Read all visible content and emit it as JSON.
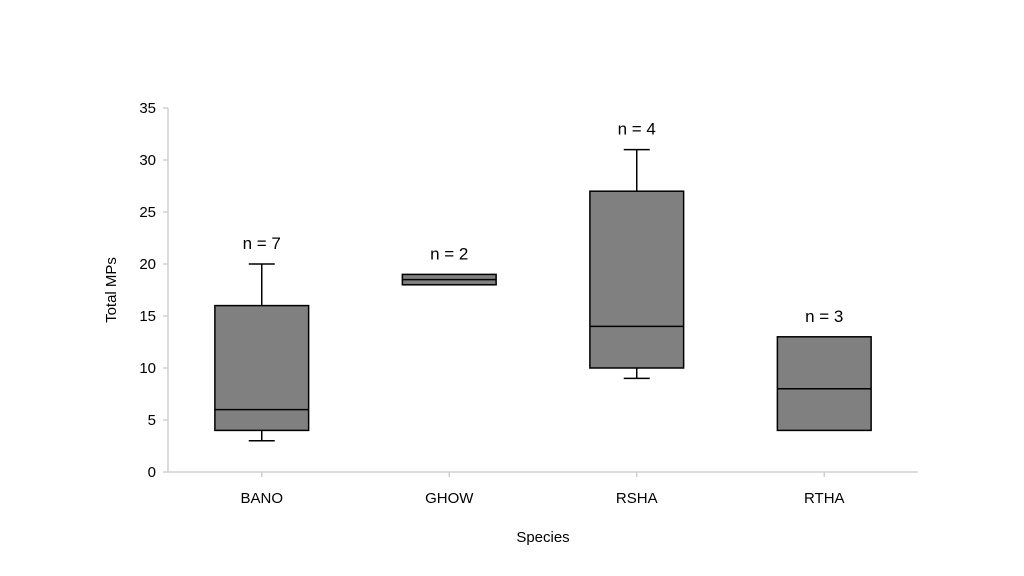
{
  "chart_data": {
    "type": "boxplot",
    "xlabel": "Species",
    "ylabel": "Total MPs",
    "ylim": [
      0,
      35
    ],
    "yticks": [
      0,
      5,
      10,
      15,
      20,
      25,
      30,
      35
    ],
    "grid": false,
    "categories": [
      "BANO",
      "GHOW",
      "RSHA",
      "RTHA"
    ],
    "boxes": [
      {
        "category": "BANO",
        "min": 3,
        "q1": 4,
        "median": 6,
        "q3": 16,
        "max": 20,
        "label": "n = 7"
      },
      {
        "category": "GHOW",
        "min": 18,
        "q1": 18,
        "median": 18.5,
        "q3": 19,
        "max": 19,
        "label": "n = 2"
      },
      {
        "category": "RSHA",
        "min": 9,
        "q1": 10,
        "median": 14,
        "q3": 27,
        "max": 31,
        "label": "n = 4"
      },
      {
        "category": "RTHA",
        "min": 4,
        "q1": 4,
        "median": 8,
        "q3": 13,
        "max": 13,
        "label": "n = 3"
      }
    ],
    "colors": {
      "box_fill": "#808080",
      "box_stroke": "#000000",
      "axis": "#d0d0d0"
    }
  }
}
